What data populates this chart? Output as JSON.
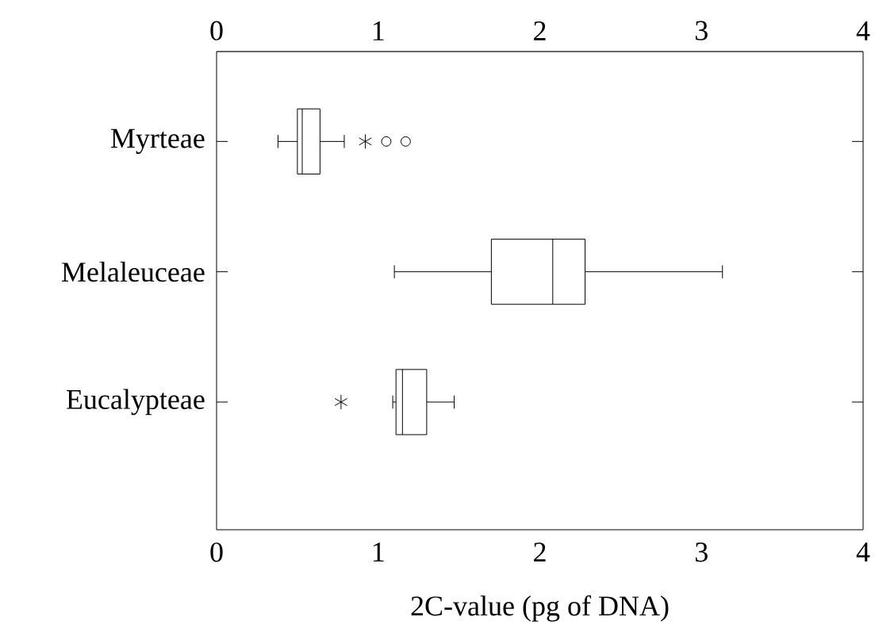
{
  "chart_data": {
    "type": "box",
    "orientation": "horizontal",
    "xlabel": "2C-value (pg of DNA)",
    "categories": [
      "Myrteae",
      "Melaleuceae",
      "Eucalypteae"
    ],
    "boxes": [
      {
        "low": 0.38,
        "q1": 0.5,
        "median": 0.53,
        "q3": 0.64,
        "high": 0.79,
        "outliers": [
          1.05,
          1.17
        ]
      },
      {
        "low": 1.1,
        "q1": 1.7,
        "median": 2.08,
        "q3": 2.28,
        "high": 3.13
      },
      {
        "low": 1.09,
        "q1": 1.11,
        "median": 1.15,
        "q3": 1.3,
        "high": 1.47
      }
    ],
    "series": [
      {
        "type": "scatter",
        "marker": "cross",
        "color": "#000000",
        "x": [
          "Myrteae",
          "Eucalypteae"
        ],
        "values": [
          0.92,
          0.77
        ]
      }
    ],
    "xlim": [
      0,
      4
    ],
    "xticks": [
      0,
      1,
      2,
      3,
      4
    ],
    "x2lim": [
      0,
      4
    ],
    "x2ticks": [
      0,
      1,
      2,
      3,
      4
    ]
  }
}
